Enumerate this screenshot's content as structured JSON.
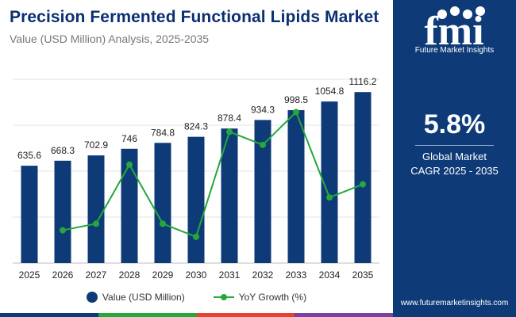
{
  "header": {
    "title": "Precision Fermented Functional Lipids Market",
    "subtitle": "Value (USD Million) Analysis, 2025-2035"
  },
  "chart_data": {
    "type": "bar",
    "categories": [
      "2025",
      "2026",
      "2027",
      "2028",
      "2029",
      "2030",
      "2031",
      "2032",
      "2033",
      "2034",
      "2035"
    ],
    "series": [
      {
        "name": "Value (USD Million)",
        "type": "bar",
        "color": "#0e3b78",
        "values": [
          635.6,
          668.3,
          702.9,
          746,
          784.8,
          824.3,
          878.4,
          934.3,
          998.5,
          1054.8,
          1116.2
        ],
        "labels": [
          "635.6",
          "668.3",
          "702.9",
          "746",
          "784.8",
          "824.3",
          "878.4",
          "934.3",
          "998.5",
          "1054.8",
          "1116.2"
        ]
      },
      {
        "name": "YoY Growth (%)",
        "type": "line",
        "color": "#25a73b",
        "values": [
          null,
          5.1,
          5.2,
          6.1,
          5.2,
          5.0,
          6.6,
          6.4,
          6.9,
          5.6,
          5.8
        ]
      }
    ],
    "ylim_bar": [
      0,
      1200
    ],
    "ylim_line": [
      4.6,
      7.4
    ],
    "grid": true,
    "legend": "bottom-center"
  },
  "legend": {
    "bar_label": "Value (USD Million)",
    "line_label": "YoY Growth (%)"
  },
  "panel": {
    "logo_text": "fmi",
    "logo_caption": "Future Market Insights",
    "cagr_value": "5.8%",
    "cagr_line1": "Global Market",
    "cagr_line2": "CAGR 2025 - 2035",
    "website": "www.futuremarketinsights.com"
  },
  "colors": {
    "navy": "#0e3b78",
    "green": "#25a73b",
    "bottom_bar": [
      "#0e3b78",
      "#25a73b",
      "#e8422e",
      "#7b3fa0"
    ]
  }
}
